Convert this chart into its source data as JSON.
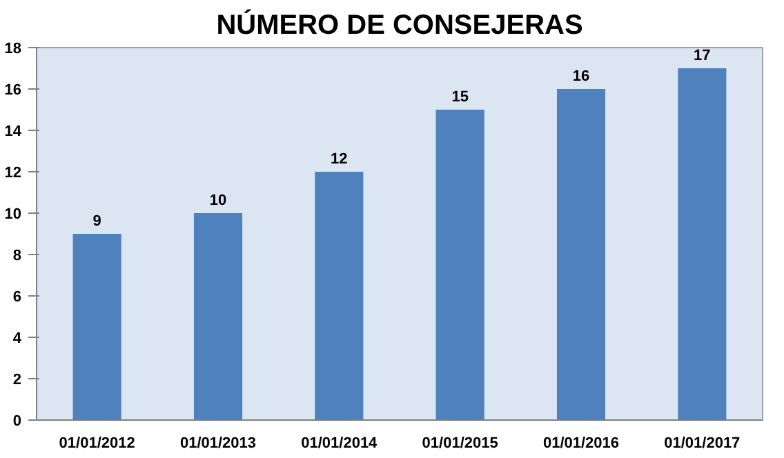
{
  "chart_data": {
    "type": "bar",
    "title": "NÚMERO DE CONSEJERAS",
    "categories": [
      "01/01/2012",
      "01/01/2013",
      "01/01/2014",
      "01/01/2015",
      "01/01/2016",
      "01/01/2017"
    ],
    "values": [
      9,
      10,
      12,
      15,
      16,
      17
    ],
    "color": "#4f81bd",
    "ylim": [
      0,
      18
    ],
    "yticks": [
      0,
      2,
      4,
      6,
      8,
      10,
      12,
      14,
      16,
      18
    ],
    "data_labels": true,
    "grid": false
  }
}
